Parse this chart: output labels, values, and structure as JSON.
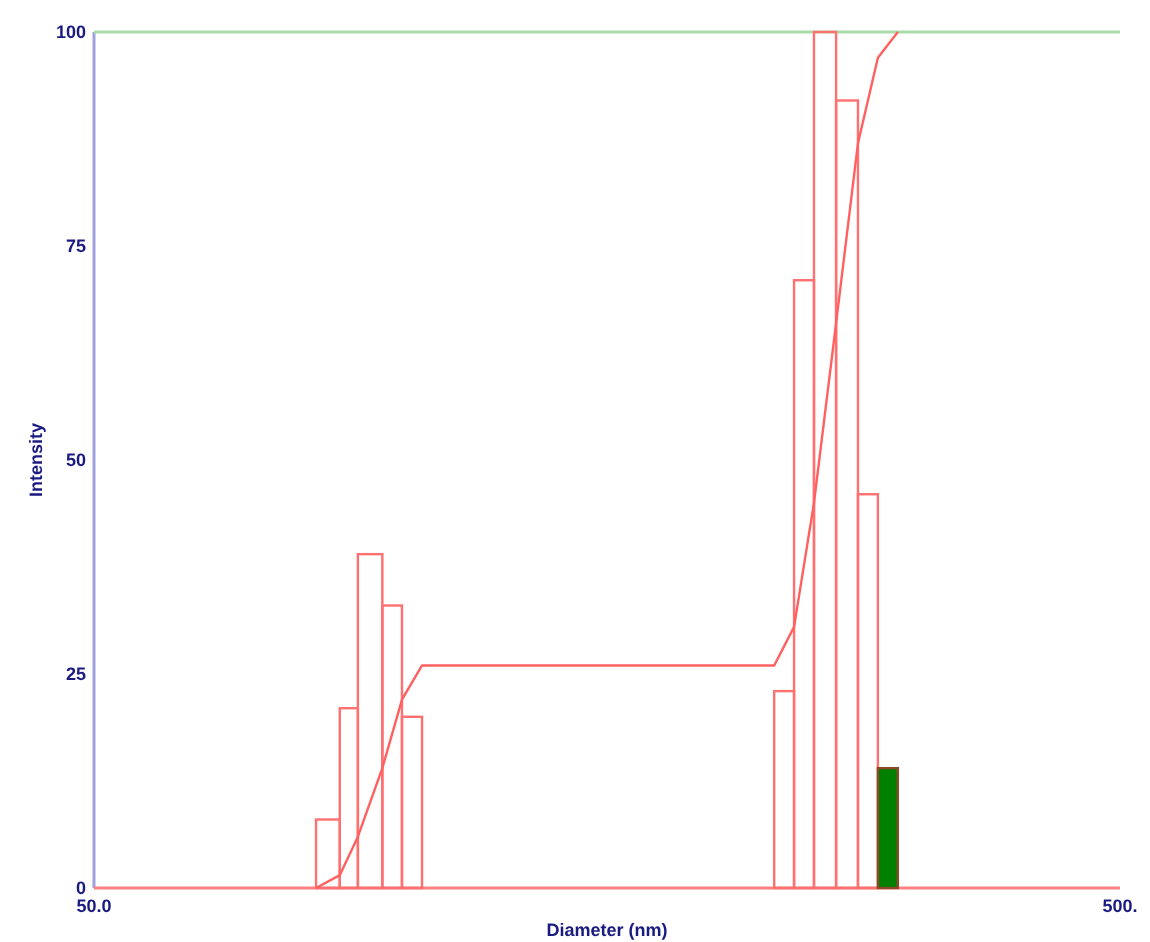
{
  "chart_data": {
    "type": "histogram",
    "xlabel": "Diameter (nm)",
    "ylabel": "Intensity",
    "log": "x",
    "xlim": [
      50,
      500
    ],
    "xticks": [
      {
        "value": 50,
        "label": "50.0"
      },
      {
        "value": 500,
        "label": "500."
      }
    ],
    "ylim": [
      0,
      100
    ],
    "yticks": [
      0,
      25,
      50,
      75,
      100
    ],
    "grid": false,
    "bins": [
      82.3,
      86.8,
      90.4,
      95.5,
      99.8,
      104.4,
      230.1,
      240.6,
      251.6,
      264.4,
      277.7,
      290.4,
      303.7
    ],
    "series": [
      {
        "color": "#ff7070",
        "values": [
          8,
          21,
          39,
          33,
          20,
          null,
          23,
          71,
          100,
          92,
          46,
          null
        ]
      },
      {
        "color": "#008000",
        "values": [
          null,
          null,
          null,
          null,
          null,
          null,
          null,
          null,
          null,
          null,
          null,
          14
        ]
      },
      {
        "type": "line",
        "color": "#ff6060",
        "x": [
          82.3,
          86.8,
          90.4,
          95.5,
          99.8,
          104.4,
          230.1,
          240.6,
          251.6,
          264.4,
          277.7,
          290.4,
          303.7
        ],
        "values": [
          0,
          1.5,
          6,
          14,
          22,
          26,
          26,
          30.5,
          45,
          66,
          87,
          97,
          100
        ]
      }
    ],
    "ref_lines": [
      {
        "axis": "y",
        "value": 100,
        "color": "#a8dca8"
      }
    ]
  }
}
